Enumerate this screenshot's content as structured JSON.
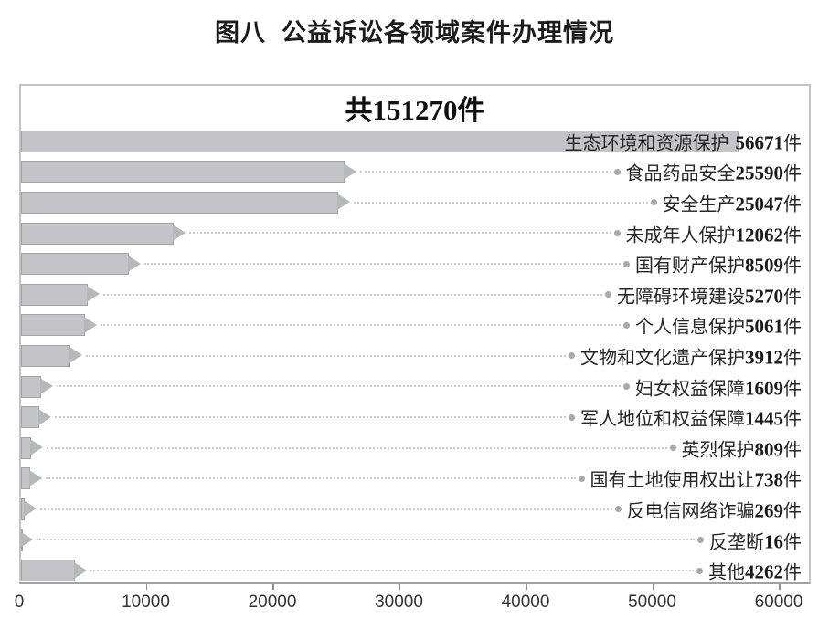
{
  "page_title": "图八  公益诉讼各领域案件办理情况",
  "chart_data": {
    "type": "bar",
    "orientation": "horizontal",
    "title": "共151270件",
    "total": 151270,
    "unit": "件",
    "categories": [
      "生态环境和资源保护",
      "食品药品安全",
      "安全生产",
      "未成年人保护",
      "国有财产保护",
      "无障碍环境建设",
      "个人信息保护",
      "文物和文化遗产保护",
      "妇女权益保障",
      "军人地位和权益保障",
      "英烈保护",
      "国有土地使用权出让",
      "反电信网络诈骗",
      "反垄断",
      "其他"
    ],
    "values": [
      56671,
      25590,
      25047,
      12062,
      8509,
      5270,
      5061,
      3912,
      1609,
      1445,
      809,
      738,
      269,
      16,
      4262
    ],
    "x_ticks": [
      0,
      10000,
      20000,
      30000,
      40000,
      50000,
      60000
    ],
    "xlim": [
      0,
      62500
    ],
    "grid": false,
    "legend": "none",
    "label_style": "right-aligned labels with dotted leader lines and end dots",
    "colors": {
      "bar_fill": "#c4c4c6",
      "bar_border": "#a3a3a3",
      "arrow": "#b7b8ba",
      "leader_line": "#cbcbcb",
      "leader_dot": "#a9a9a9",
      "plot_border": "#c4c4c4",
      "axis_line": "#a2a2a2",
      "text": "#262626"
    }
  }
}
